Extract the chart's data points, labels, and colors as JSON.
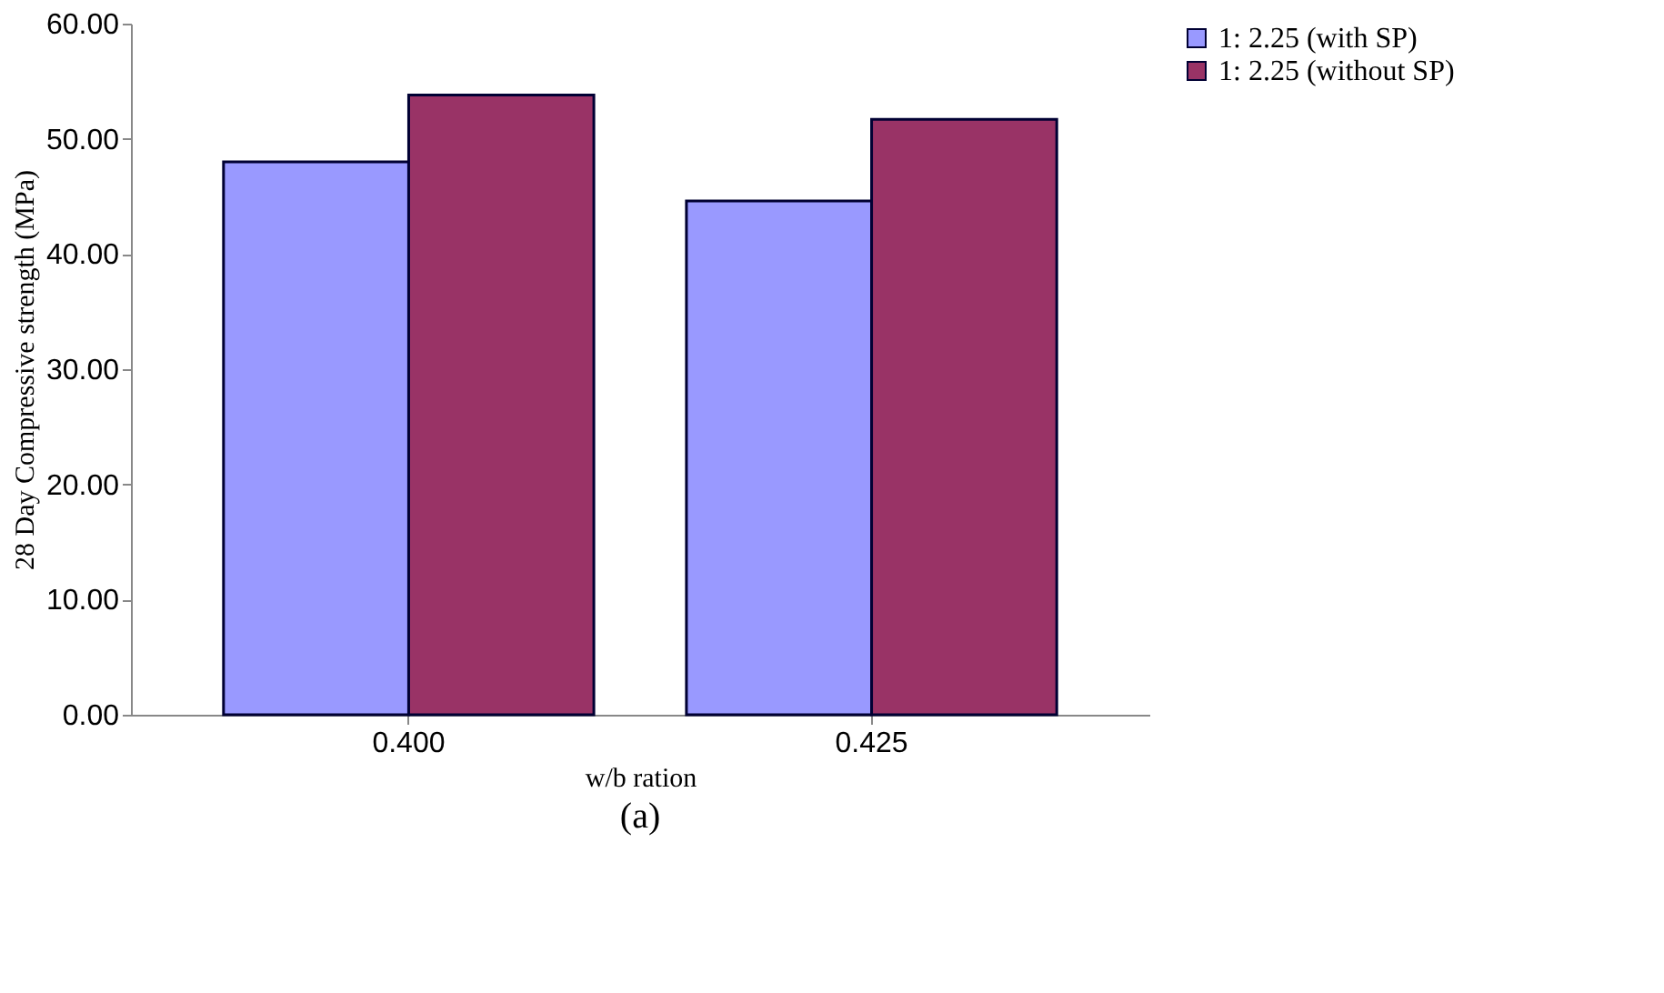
{
  "chart_data": {
    "type": "bar",
    "xlabel": "w/b ration",
    "ylabel": "28 Day Compressive strength (MPa)",
    "categories": [
      "0.400",
      "0.425"
    ],
    "series": [
      {
        "name": "1: 2.25 (with SP)",
        "color": "#9999ff",
        "values": [
          48.0,
          44.6
        ]
      },
      {
        "name": "1: 2.25 (without SP)",
        "color": "#993366",
        "values": [
          53.8,
          51.7
        ]
      }
    ],
    "ylim": [
      0,
      60
    ],
    "yticks": [
      {
        "value": 0,
        "label": "0.00"
      },
      {
        "value": 10,
        "label": "10.00"
      },
      {
        "value": 20,
        "label": "20.00"
      },
      {
        "value": 30,
        "label": "30.00"
      },
      {
        "value": 40,
        "label": "40.00"
      },
      {
        "value": 50,
        "label": "50.00"
      },
      {
        "value": 60,
        "label": "60.00"
      }
    ],
    "grid": false,
    "legend": "right",
    "annotations": [
      "(a)"
    ]
  }
}
